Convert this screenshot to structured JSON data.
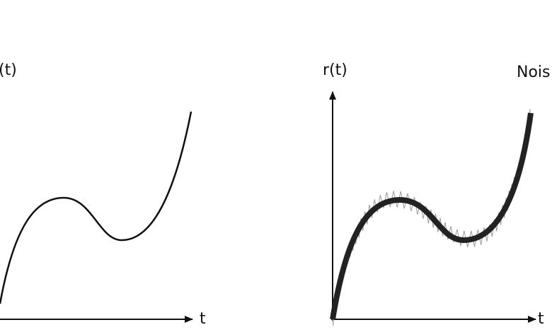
{
  "left": {
    "y_label": "(t)",
    "x_label": "t"
  },
  "right": {
    "y_label": "r(t)",
    "x_label": "t",
    "annotation": "Nois"
  }
}
